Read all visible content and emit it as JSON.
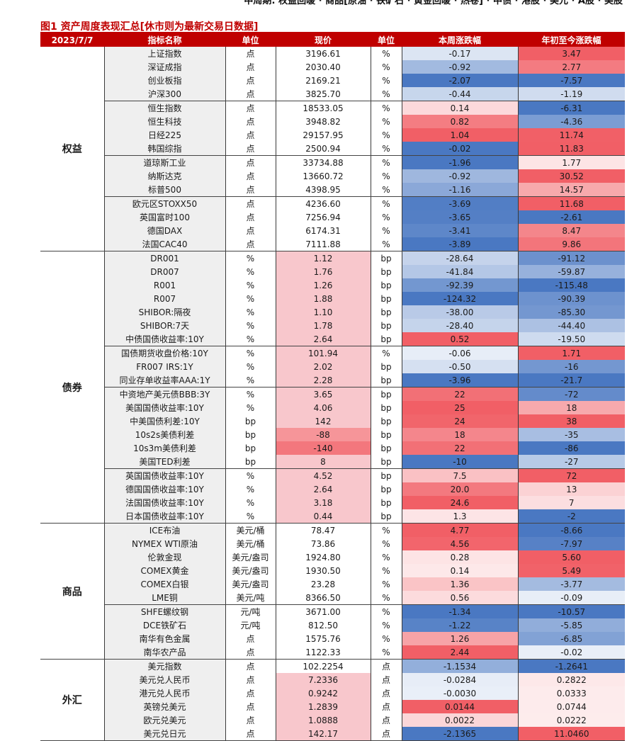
{
  "header": {
    "top_text": "中周期: 权益回暖 · 商品[原油 · 铁矿石 · 黄金回暖 · 热卷] · 中债 · 港股 · 美元 · A股 · 美股",
    "figure_title": "图1  资产周度表现汇总[休市则为最新交易日数据]"
  },
  "table": {
    "columns": [
      "2023/7/7",
      "指标名称",
      "单位",
      "现价",
      "单位",
      "本周涨跌幅",
      "年初至今涨跌幅"
    ],
    "groups": [
      {
        "name": "权益",
        "subgroups": [
          [
            {
              "name": "上证指数",
              "unit": "点",
              "price": "3196.61",
              "unit2": "%",
              "week": "-0.17",
              "ytd": "3.47"
            },
            {
              "name": "深证成指",
              "unit": "点",
              "price": "2030.40",
              "unit2": "%",
              "week": "-0.92",
              "ytd": "2.77"
            },
            {
              "name": "创业板指",
              "unit": "点",
              "price": "2169.21",
              "unit2": "%",
              "week": "-2.07",
              "ytd": "-7.57"
            },
            {
              "name": "沪深300",
              "unit": "点",
              "price": "3825.70",
              "unit2": "%",
              "week": "-0.44",
              "ytd": "-1.19"
            }
          ],
          [
            {
              "name": "恒生指数",
              "unit": "点",
              "price": "18533.05",
              "unit2": "%",
              "week": "0.14",
              "ytd": "-6.31"
            },
            {
              "name": "恒生科技",
              "unit": "点",
              "price": "3948.82",
              "unit2": "%",
              "week": "0.82",
              "ytd": "-4.36"
            },
            {
              "name": "日经225",
              "unit": "点",
              "price": "29157.95",
              "unit2": "%",
              "week": "1.04",
              "ytd": "11.74"
            },
            {
              "name": "韩国综指",
              "unit": "点",
              "price": "2500.94",
              "unit2": "%",
              "week": "-0.02",
              "ytd": "11.83"
            }
          ],
          [
            {
              "name": "道琼斯工业",
              "unit": "点",
              "price": "33734.88",
              "unit2": "%",
              "week": "-1.96",
              "ytd": "1.77"
            },
            {
              "name": "纳斯达克",
              "unit": "点",
              "price": "13660.72",
              "unit2": "%",
              "week": "-0.92",
              "ytd": "30.52"
            },
            {
              "name": "标普500",
              "unit": "点",
              "price": "4398.95",
              "unit2": "%",
              "week": "-1.16",
              "ytd": "14.57"
            }
          ],
          [
            {
              "name": "欧元区STOXX50",
              "unit": "点",
              "price": "4236.60",
              "unit2": "%",
              "week": "-3.69",
              "ytd": "11.68"
            },
            {
              "name": "英国富时100",
              "unit": "点",
              "price": "7256.94",
              "unit2": "%",
              "week": "-3.65",
              "ytd": "-2.61"
            },
            {
              "name": "德国DAX",
              "unit": "点",
              "price": "6174.31",
              "unit2": "%",
              "week": "-3.41",
              "ytd": "8.47"
            },
            {
              "name": "法国CAC40",
              "unit": "点",
              "price": "7111.88",
              "unit2": "%",
              "week": "-3.89",
              "ytd": "9.86"
            }
          ]
        ]
      },
      {
        "name": "债券",
        "subgroups": [
          [
            {
              "name": "DR001",
              "unit": "%",
              "price": "1.12",
              "unit2": "bp",
              "week": "-28.64",
              "ytd": "-91.12"
            },
            {
              "name": "DR007",
              "unit": "%",
              "price": "1.76",
              "unit2": "bp",
              "week": "-41.84",
              "ytd": "-59.87"
            },
            {
              "name": "R001",
              "unit": "%",
              "price": "1.26",
              "unit2": "bp",
              "week": "-92.39",
              "ytd": "-115.48"
            },
            {
              "name": "R007",
              "unit": "%",
              "price": "1.88",
              "unit2": "bp",
              "week": "-124.32",
              "ytd": "-90.39"
            },
            {
              "name": "SHIBOR:隔夜",
              "unit": "%",
              "price": "1.10",
              "unit2": "bp",
              "week": "-38.00",
              "ytd": "-85.30"
            },
            {
              "name": "SHIBOR:7天",
              "unit": "%",
              "price": "1.78",
              "unit2": "bp",
              "week": "-28.40",
              "ytd": "-44.40"
            },
            {
              "name": "中债国债收益率:10Y",
              "unit": "%",
              "price": "2.64",
              "unit2": "bp",
              "week": "0.52",
              "ytd": "-19.50"
            }
          ],
          [
            {
              "name": "国债期货收盘价格:10Y",
              "unit": "%",
              "price": "101.94",
              "unit2": "%",
              "week": "-0.06",
              "ytd": "1.71"
            },
            {
              "name": "FR007 IRS:1Y",
              "unit": "%",
              "price": "2.02",
              "unit2": "bp",
              "week": "-0.50",
              "ytd": "-16"
            },
            {
              "name": "同业存单收益率AAA:1Y",
              "unit": "%",
              "price": "2.28",
              "unit2": "bp",
              "week": "-3.96",
              "ytd": "-21.7"
            }
          ],
          [
            {
              "name": "中资地产美元债BBB:3Y",
              "unit": "%",
              "price": "3.65",
              "unit2": "bp",
              "week": "22",
              "ytd": "-72"
            },
            {
              "name": "美国国债收益率:10Y",
              "unit": "%",
              "price": "4.06",
              "unit2": "bp",
              "week": "25",
              "ytd": "18"
            },
            {
              "name": "中美国债利差:10Y",
              "unit": "bp",
              "price": "142",
              "unit2": "bp",
              "week": "24",
              "ytd": "38"
            },
            {
              "name": "10s2s美债利差",
              "unit": "bp",
              "price": "-88",
              "unit2": "bp",
              "week": "18",
              "ytd": "-35"
            },
            {
              "name": "10s3m美债利差",
              "unit": "bp",
              "price": "-140",
              "unit2": "bp",
              "week": "22",
              "ytd": "-86"
            },
            {
              "name": "美国TED利差",
              "unit": "bp",
              "price": "8",
              "unit2": "bp",
              "week": "-10",
              "ytd": "-27"
            }
          ],
          [
            {
              "name": "英国国债收益率:10Y",
              "unit": "%",
              "price": "4.52",
              "unit2": "bp",
              "week": "7.5",
              "ytd": "72"
            },
            {
              "name": "德国国债收益率:10Y",
              "unit": "%",
              "price": "2.64",
              "unit2": "bp",
              "week": "20.0",
              "ytd": "13"
            },
            {
              "name": "法国国债收益率:10Y",
              "unit": "%",
              "price": "3.18",
              "unit2": "bp",
              "week": "24.6",
              "ytd": "7"
            },
            {
              "name": "日本国债收益率:10Y",
              "unit": "%",
              "price": "0.44",
              "unit2": "bp",
              "week": "1.3",
              "ytd": "-2"
            }
          ]
        ]
      },
      {
        "name": "商品",
        "subgroups": [
          [
            {
              "name": "ICE布油",
              "unit": "美元/桶",
              "price": "78.47",
              "unit2": "%",
              "week": "4.77",
              "ytd": "-8.66"
            },
            {
              "name": "NYMEX WTI原油",
              "unit": "美元/桶",
              "price": "73.86",
              "unit2": "%",
              "week": "4.56",
              "ytd": "-7.97"
            },
            {
              "name": "伦敦金现",
              "unit": "美元/盎司",
              "price": "1924.80",
              "unit2": "%",
              "week": "0.28",
              "ytd": "5.60"
            },
            {
              "name": "COMEX黄金",
              "unit": "美元/盎司",
              "price": "1930.50",
              "unit2": "%",
              "week": "0.14",
              "ytd": "5.49"
            },
            {
              "name": "COMEX白银",
              "unit": "美元/盎司",
              "price": "23.28",
              "unit2": "%",
              "week": "1.36",
              "ytd": "-3.77"
            },
            {
              "name": "LME铜",
              "unit": "美元/吨",
              "price": "8366.50",
              "unit2": "%",
              "week": "0.56",
              "ytd": "-0.09"
            }
          ],
          [
            {
              "name": "SHFE螺纹钢",
              "unit": "元/吨",
              "price": "3671.00",
              "unit2": "%",
              "week": "-1.34",
              "ytd": "-10.57"
            },
            {
              "name": "DCE铁矿石",
              "unit": "元/吨",
              "price": "812.50",
              "unit2": "%",
              "week": "-1.22",
              "ytd": "-5.85"
            },
            {
              "name": "南华有色金属",
              "unit": "点",
              "price": "1575.76",
              "unit2": "%",
              "week": "1.26",
              "ytd": "-6.85"
            },
            {
              "name": "南华农产品",
              "unit": "点",
              "price": "1122.33",
              "unit2": "%",
              "week": "2.44",
              "ytd": "-0.02"
            }
          ]
        ]
      },
      {
        "name": "外汇",
        "subgroups": [
          [
            {
              "name": "美元指数",
              "unit": "点",
              "price": "102.2254",
              "unit2": "点",
              "week": "-1.1534",
              "ytd": "-1.2641"
            },
            {
              "name": "美元兑人民币",
              "unit": "点",
              "price": "7.2336",
              "unit2": "点",
              "week": "-0.0284",
              "ytd": "0.2822"
            },
            {
              "name": "港元兑人民币",
              "unit": "点",
              "price": "0.9242",
              "unit2": "点",
              "week": "-0.0030",
              "ytd": "0.0333"
            },
            {
              "name": "英镑兑美元",
              "unit": "点",
              "price": "1.2839",
              "unit2": "点",
              "week": "0.0144",
              "ytd": "0.0744"
            },
            {
              "name": "欧元兑美元",
              "unit": "点",
              "price": "1.0888",
              "unit2": "点",
              "week": "0.0022",
              "ytd": "0.0222"
            },
            {
              "name": "美元兑日元",
              "unit": "点",
              "price": "142.17",
              "unit2": "点",
              "week": "-2.1365",
              "ytd": "11.0460"
            }
          ]
        ]
      }
    ]
  },
  "colors": {
    "header_bg": "#c00000",
    "name_bg": "#efefef",
    "neg_color": "#4a78c2",
    "pos_color": "#f15f66"
  }
}
